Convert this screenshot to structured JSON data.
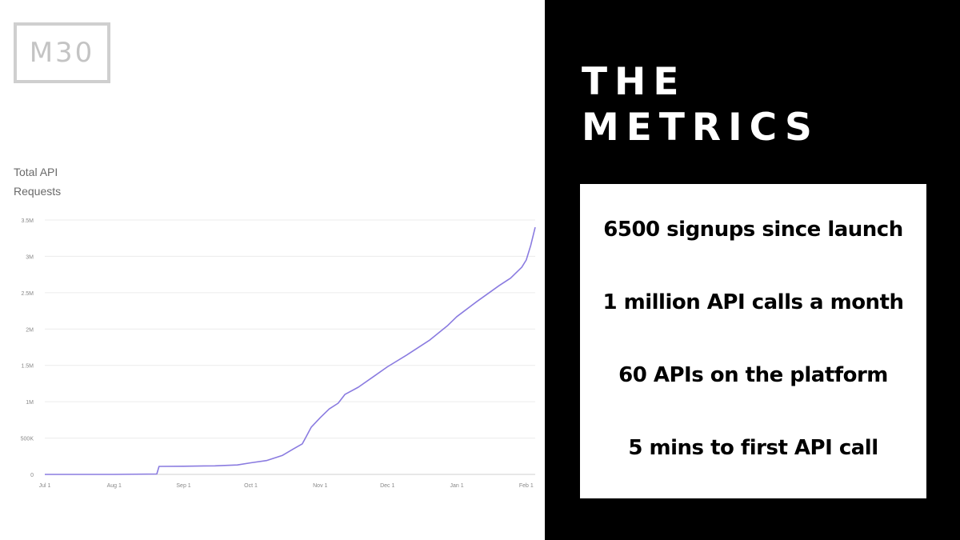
{
  "logo": {
    "text": "M30"
  },
  "heading": {
    "line1": "THE",
    "line2": "METRICS"
  },
  "metrics": [
    {
      "label": "6500 signups since launch"
    },
    {
      "label": "1 million API calls a month"
    },
    {
      "label": "60 APIs on the platform"
    },
    {
      "label": "5 mins to first API call"
    }
  ],
  "chart_data": {
    "type": "line",
    "title_line1": "Total API",
    "title_line2": "Requests",
    "x_ticks": [
      "Jul 1",
      "Aug 1",
      "Sep 1",
      "Oct 1",
      "Nov 1",
      "Dec 1",
      "Jan 1",
      "Feb 1"
    ],
    "y_ticks": [
      "0",
      "500K",
      "1M",
      "1.5M",
      "2M",
      "2.5M",
      "3M",
      "3.5M"
    ],
    "ylim": [
      0,
      3500000
    ],
    "xlim": [
      "2019-07-01",
      "2020-02-05"
    ],
    "grid": true,
    "line_color": "#8a7be0",
    "series": [
      {
        "points": [
          [
            "2019-07-01",
            0
          ],
          [
            "2019-08-01",
            0
          ],
          [
            "2019-08-20",
            5000
          ],
          [
            "2019-08-21",
            110000
          ],
          [
            "2019-09-01",
            112000
          ],
          [
            "2019-09-15",
            118000
          ],
          [
            "2019-09-25",
            130000
          ],
          [
            "2019-10-01",
            160000
          ],
          [
            "2019-10-08",
            190000
          ],
          [
            "2019-10-15",
            260000
          ],
          [
            "2019-10-20",
            350000
          ],
          [
            "2019-10-24",
            420000
          ],
          [
            "2019-10-28",
            650000
          ],
          [
            "2019-11-01",
            780000
          ],
          [
            "2019-11-05",
            900000
          ],
          [
            "2019-11-09",
            980000
          ],
          [
            "2019-11-12",
            1100000
          ],
          [
            "2019-11-18",
            1200000
          ],
          [
            "2019-11-25",
            1350000
          ],
          [
            "2019-12-01",
            1480000
          ],
          [
            "2019-12-10",
            1650000
          ],
          [
            "2019-12-20",
            1850000
          ],
          [
            "2019-12-28",
            2050000
          ],
          [
            "2020-01-01",
            2170000
          ],
          [
            "2020-01-10",
            2380000
          ],
          [
            "2020-01-20",
            2600000
          ],
          [
            "2020-01-25",
            2700000
          ],
          [
            "2020-01-30",
            2850000
          ],
          [
            "2020-02-01",
            2950000
          ],
          [
            "2020-02-03",
            3150000
          ],
          [
            "2020-02-05",
            3400000
          ]
        ]
      }
    ]
  }
}
